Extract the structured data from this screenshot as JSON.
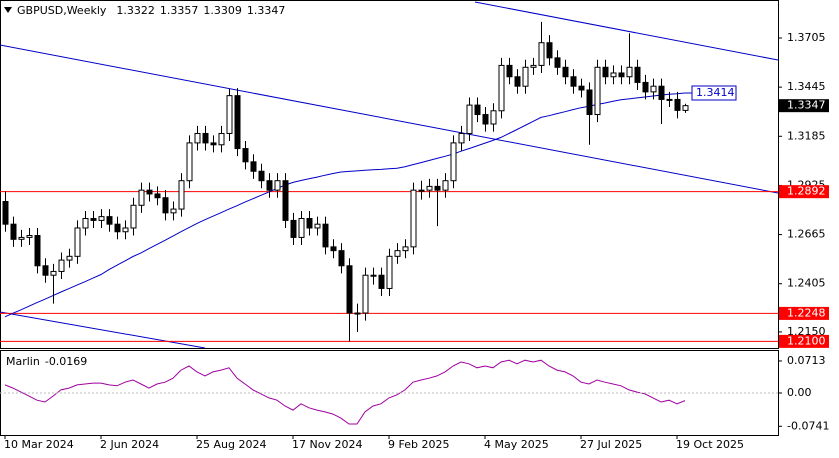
{
  "chart_data": {
    "type": "candlestick",
    "title": "GBPUSD,Weekly",
    "categories": [
      "10 Mar 2024",
      null,
      null,
      null,
      null,
      null,
      null,
      null,
      null,
      null,
      null,
      null,
      "2 Jun 2024",
      null,
      null,
      null,
      null,
      null,
      null,
      null,
      null,
      null,
      null,
      null,
      "25 Aug 2024",
      null,
      null,
      null,
      null,
      null,
      null,
      null,
      null,
      null,
      null,
      null,
      "17 Nov 2024",
      null,
      null,
      null,
      null,
      null,
      null,
      null,
      null,
      null,
      null,
      null,
      "9 Feb 2025",
      null,
      null,
      null,
      null,
      null,
      null,
      null,
      null,
      null,
      null,
      null,
      "4 May 2025",
      null,
      null,
      null,
      null,
      null,
      null,
      null,
      null,
      null,
      null,
      null,
      "27 Jul 2025",
      null,
      null,
      null,
      null,
      null,
      null,
      null,
      null,
      null,
      null,
      null,
      "19 Oct 2025",
      null
    ],
    "open": [
      1.284,
      1.272,
      1.264,
      1.265,
      1.266,
      1.25,
      1.245,
      1.247,
      1.253,
      1.255,
      1.27,
      1.275,
      1.274,
      1.276,
      1.272,
      1.268,
      1.27,
      1.282,
      1.29,
      1.288,
      1.286,
      1.278,
      1.28,
      1.295,
      1.315,
      1.32,
      1.315,
      1.314,
      1.32,
      1.34,
      1.312,
      1.305,
      1.3,
      1.295,
      1.29,
      1.295,
      1.274,
      1.265,
      1.275,
      1.27,
      1.272,
      1.26,
      1.258,
      1.25,
      1.225,
      1.225,
      1.245,
      1.245,
      1.238,
      1.255,
      1.258,
      1.26,
      1.29,
      1.29,
      1.292,
      1.29,
      1.295,
      1.315,
      1.32,
      1.335,
      1.33,
      1.325,
      1.332,
      1.356,
      1.35,
      1.345,
      1.355,
      1.356,
      1.368,
      1.36,
      1.355,
      1.35,
      1.345,
      1.343,
      1.33,
      1.355,
      1.35,
      1.352,
      1.35,
      1.355,
      1.347,
      1.342,
      1.345,
      1.338,
      1.338,
      1.3322
    ],
    "high": [
      1.2895,
      1.276,
      1.269,
      1.27,
      1.27,
      1.254,
      1.251,
      1.257,
      1.259,
      1.274,
      1.279,
      1.279,
      1.28,
      1.28,
      1.276,
      1.274,
      1.286,
      1.294,
      1.294,
      1.292,
      1.29,
      1.284,
      1.299,
      1.319,
      1.324,
      1.324,
      1.319,
      1.324,
      1.3435,
      1.344,
      1.316,
      1.309,
      1.304,
      1.299,
      1.299,
      1.299,
      1.278,
      1.279,
      1.279,
      1.276,
      1.276,
      1.264,
      1.262,
      1.254,
      1.23,
      1.249,
      1.249,
      1.249,
      1.259,
      1.262,
      1.264,
      1.294,
      1.295,
      1.296,
      1.296,
      1.299,
      1.319,
      1.324,
      1.339,
      1.339,
      1.334,
      1.336,
      1.36,
      1.36,
      1.354,
      1.359,
      1.36,
      1.379,
      1.372,
      1.364,
      1.359,
      1.354,
      1.349,
      1.347,
      1.359,
      1.359,
      1.356,
      1.356,
      1.373,
      1.359,
      1.351,
      1.349,
      1.349,
      1.342,
      1.342,
      1.3357
    ],
    "low": [
      1.268,
      1.26,
      1.26,
      1.261,
      1.246,
      1.241,
      1.23,
      1.243,
      1.249,
      1.251,
      1.266,
      1.27,
      1.27,
      1.268,
      1.264,
      1.264,
      1.266,
      1.278,
      1.284,
      1.282,
      1.274,
      1.274,
      1.276,
      1.291,
      1.311,
      1.311,
      1.31,
      1.31,
      1.316,
      1.308,
      1.301,
      1.296,
      1.291,
      1.286,
      1.286,
      1.27,
      1.261,
      1.261,
      1.266,
      1.266,
      1.256,
      1.254,
      1.246,
      1.21,
      1.215,
      1.221,
      1.24,
      1.234,
      1.234,
      1.251,
      1.254,
      1.256,
      1.285,
      1.286,
      1.271,
      1.286,
      1.291,
      1.311,
      1.316,
      1.326,
      1.321,
      1.321,
      1.328,
      1.346,
      1.341,
      1.341,
      1.351,
      1.352,
      1.356,
      1.351,
      1.346,
      1.341,
      1.339,
      1.314,
      1.326,
      1.346,
      1.346,
      1.346,
      1.346,
      1.343,
      1.338,
      1.338,
      1.325,
      1.334,
      1.328,
      1.3309
    ],
    "close": [
      1.272,
      1.264,
      1.265,
      1.266,
      1.25,
      1.245,
      1.247,
      1.253,
      1.255,
      1.27,
      1.275,
      1.274,
      1.276,
      1.272,
      1.268,
      1.27,
      1.282,
      1.29,
      1.288,
      1.286,
      1.278,
      1.28,
      1.295,
      1.315,
      1.32,
      1.315,
      1.314,
      1.32,
      1.34,
      1.312,
      1.305,
      1.3,
      1.295,
      1.29,
      1.295,
      1.274,
      1.265,
      1.275,
      1.27,
      1.272,
      1.26,
      1.258,
      1.25,
      1.225,
      1.225,
      1.245,
      1.245,
      1.238,
      1.255,
      1.258,
      1.26,
      1.29,
      1.29,
      1.292,
      1.29,
      1.295,
      1.315,
      1.32,
      1.335,
      1.33,
      1.325,
      1.332,
      1.356,
      1.35,
      1.345,
      1.355,
      1.356,
      1.368,
      1.36,
      1.355,
      1.35,
      1.345,
      1.343,
      1.33,
      1.355,
      1.35,
      1.352,
      1.35,
      1.355,
      1.347,
      1.342,
      1.345,
      1.338,
      1.338,
      1.3322,
      1.3347
    ],
    "up_color": "#ffffff",
    "down_color": "#000000",
    "edge_color": "#000000",
    "ylim": [
      1.2065,
      1.3906
    ],
    "yticks": [
      1.3705,
      1.3445,
      1.3185,
      1.2925,
      1.2665,
      1.2405,
      {
        "value": 1.215,
        "label": "1.2150"
      }
    ],
    "levels": [
      1.2892,
      1.2248,
      {
        "value": 1.21,
        "label": "1.2100"
      }
    ],
    "level_color": "#ff0000",
    "ma": {
      "color": "#0000c8",
      "values": [
        1.223,
        1.2249,
        1.2267,
        1.2286,
        1.2305,
        1.2323,
        1.2342,
        1.2361,
        1.2379,
        1.2398,
        1.2416,
        1.2435,
        1.2454,
        1.248,
        1.2503,
        1.2526,
        1.2549,
        1.2568,
        1.2591,
        1.2613,
        1.2635,
        1.2657,
        1.268,
        1.2702,
        1.2724,
        1.2744,
        1.2762,
        1.2781,
        1.28,
        1.2818,
        1.2837,
        1.2855,
        1.2873,
        1.2891,
        1.2909,
        1.2927,
        1.2941,
        1.2951,
        1.296,
        1.2969,
        1.2979,
        1.2988,
        1.2996,
        1.2999,
        1.3002,
        1.3005,
        1.3008,
        1.301,
        1.3013,
        1.3016,
        1.3024,
        1.3035,
        1.3046,
        1.3057,
        1.3068,
        1.3079,
        1.3091,
        1.3106,
        1.312,
        1.3134,
        1.3149,
        1.3163,
        1.3179,
        1.32,
        1.3221,
        1.3242,
        1.3264,
        1.3285,
        1.3294,
        1.3305,
        1.3315,
        1.3326,
        1.3336,
        1.3344,
        1.3353,
        1.3361,
        1.337,
        1.3378,
        1.3383,
        1.3388,
        1.3393,
        1.3398,
        1.3403,
        1.3407,
        1.341,
        1.3414
      ]
    },
    "indicator": {
      "name": "Marlin",
      "color": "#a000a0",
      "ylim": [
        -0.0935,
        0.0935
      ],
      "yticks": [
        0.0713,
        {
          "value": 0,
          "label": "0.00"
        },
        -0.0741
      ],
      "values": [
        0.018,
        0.011,
        0.002,
        -0.007,
        -0.016,
        -0.02,
        -0.007,
        0.007,
        0.011,
        0.018,
        0.02,
        0.022,
        0.022,
        0.018,
        0.016,
        0.024,
        0.029,
        0.02,
        0.011,
        0.02,
        0.024,
        0.033,
        0.051,
        0.06,
        0.047,
        0.038,
        0.047,
        0.051,
        0.056,
        0.033,
        0.02,
        0.007,
        -0.002,
        -0.011,
        -0.016,
        -0.029,
        -0.038,
        -0.024,
        -0.033,
        -0.038,
        -0.042,
        -0.047,
        -0.056,
        -0.069,
        -0.069,
        -0.042,
        -0.029,
        -0.024,
        -0.011,
        -0.004,
        0.007,
        0.024,
        0.029,
        0.033,
        0.038,
        0.047,
        0.06,
        0.069,
        0.065,
        0.056,
        0.06,
        0.056,
        0.069,
        0.073,
        0.065,
        0.073,
        0.069,
        0.073,
        0.06,
        0.051,
        0.047,
        0.038,
        0.024,
        0.02,
        0.029,
        0.024,
        0.02,
        0.016,
        0.007,
        0.002,
        -0.002,
        -0.011,
        -0.02,
        -0.016,
        -0.024,
        -0.0169
      ]
    }
  }
}
